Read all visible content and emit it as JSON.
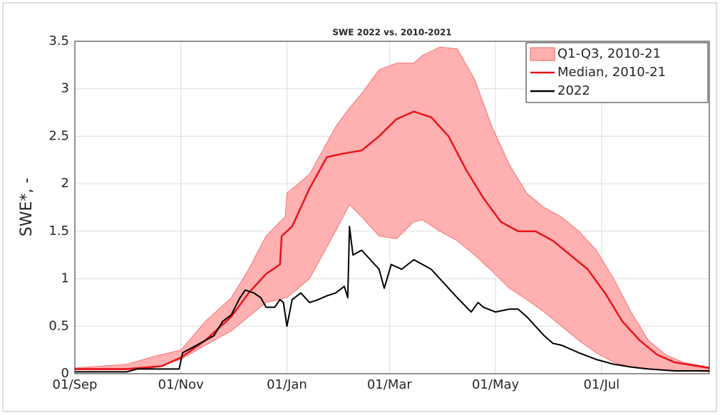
{
  "chart_data": {
    "type": "line",
    "title": "SWE 2022 vs. 2010-2021",
    "y_label": "SWE*, -",
    "xlim": [
      0,
      365
    ],
    "xticks": [
      {
        "value": 0,
        "label": "01/Sep"
      },
      {
        "value": 61,
        "label": "01/Nov"
      },
      {
        "value": 122,
        "label": "01/Jan"
      },
      {
        "value": 181,
        "label": "01/Mar"
      },
      {
        "value": 242,
        "label": "01/May"
      },
      {
        "value": 303,
        "label": "01/Jul"
      }
    ],
    "ylim": [
      0,
      3.5
    ],
    "yticks": [
      0,
      0.5,
      1,
      {
        "value": 1.5,
        "label": "1.5"
      },
      2,
      2.5,
      3,
      3.5
    ],
    "grid": true,
    "legend": "upper right",
    "series": [
      {
        "name": "Q1-Q3, 2010-21",
        "kind": "band",
        "color": "#ffb0b0",
        "x": [
          0,
          30,
          45,
          61,
          75,
          90,
          100,
          110,
          118,
          121,
          122,
          135,
          150,
          158,
          165,
          175,
          185,
          195,
          200,
          210,
          220,
          230,
          240,
          250,
          260,
          270,
          280,
          290,
          300,
          310,
          320,
          330,
          340,
          350,
          365
        ],
        "values": [
          0.04,
          0.04,
          0.06,
          0.15,
          0.3,
          0.45,
          0.6,
          0.75,
          0.78,
          0.8,
          0.8,
          1.0,
          1.5,
          1.78,
          1.65,
          1.45,
          1.42,
          1.6,
          1.62,
          1.5,
          1.4,
          1.25,
          1.08,
          0.9,
          0.78,
          0.65,
          0.5,
          0.35,
          0.22,
          0.12,
          0.07,
          0.05,
          0.04,
          0.03,
          0.02
        ],
        "upper": [
          0.06,
          0.1,
          0.18,
          0.25,
          0.55,
          0.8,
          1.1,
          1.45,
          1.6,
          1.65,
          1.9,
          2.1,
          2.6,
          2.8,
          2.95,
          3.2,
          3.27,
          3.27,
          3.35,
          3.44,
          3.42,
          3.1,
          2.6,
          2.2,
          1.9,
          1.75,
          1.65,
          1.5,
          1.3,
          1.0,
          0.65,
          0.35,
          0.2,
          0.12,
          0.07
        ]
      },
      {
        "name": "Median, 2010-21",
        "kind": "line",
        "color": "#e8141a",
        "x": [
          0,
          30,
          50,
          61,
          75,
          90,
          100,
          110,
          118,
          119,
          125,
          135,
          145,
          155,
          165,
          175,
          185,
          195,
          205,
          215,
          225,
          235,
          245,
          255,
          265,
          275,
          285,
          295,
          305,
          315,
          325,
          335,
          345,
          365
        ],
        "values": [
          0.05,
          0.05,
          0.08,
          0.17,
          0.35,
          0.6,
          0.85,
          1.05,
          1.15,
          1.45,
          1.55,
          1.95,
          2.28,
          2.32,
          2.35,
          2.5,
          2.68,
          2.76,
          2.7,
          2.5,
          2.15,
          1.85,
          1.6,
          1.5,
          1.5,
          1.4,
          1.25,
          1.1,
          0.85,
          0.55,
          0.35,
          0.2,
          0.12,
          0.06
        ]
      },
      {
        "name": "2022",
        "kind": "line",
        "color": "#000000",
        "x": [
          0,
          20,
          30,
          36,
          60,
          62,
          70,
          75,
          80,
          85,
          90,
          95,
          98,
          103,
          107,
          110,
          115,
          118,
          120,
          122,
          125,
          130,
          135,
          140,
          145,
          150,
          155,
          157,
          158,
          160,
          165,
          170,
          175,
          178,
          182,
          188,
          195,
          200,
          205,
          210,
          215,
          220,
          228,
          232,
          235,
          242,
          250,
          255,
          260,
          265,
          270,
          275,
          280,
          290,
          300,
          310,
          320,
          330,
          345,
          365
        ],
        "values": [
          0.02,
          0.02,
          0.02,
          0.05,
          0.05,
          0.22,
          0.3,
          0.35,
          0.4,
          0.55,
          0.62,
          0.8,
          0.88,
          0.85,
          0.8,
          0.7,
          0.7,
          0.78,
          0.75,
          0.5,
          0.78,
          0.85,
          0.75,
          0.78,
          0.82,
          0.85,
          0.92,
          0.8,
          1.55,
          1.25,
          1.3,
          1.2,
          1.1,
          0.9,
          1.15,
          1.1,
          1.2,
          1.15,
          1.1,
          1.0,
          0.9,
          0.8,
          0.65,
          0.75,
          0.7,
          0.65,
          0.68,
          0.68,
          0.6,
          0.5,
          0.4,
          0.32,
          0.3,
          0.22,
          0.15,
          0.1,
          0.07,
          0.05,
          0.03,
          0.03
        ]
      }
    ]
  }
}
